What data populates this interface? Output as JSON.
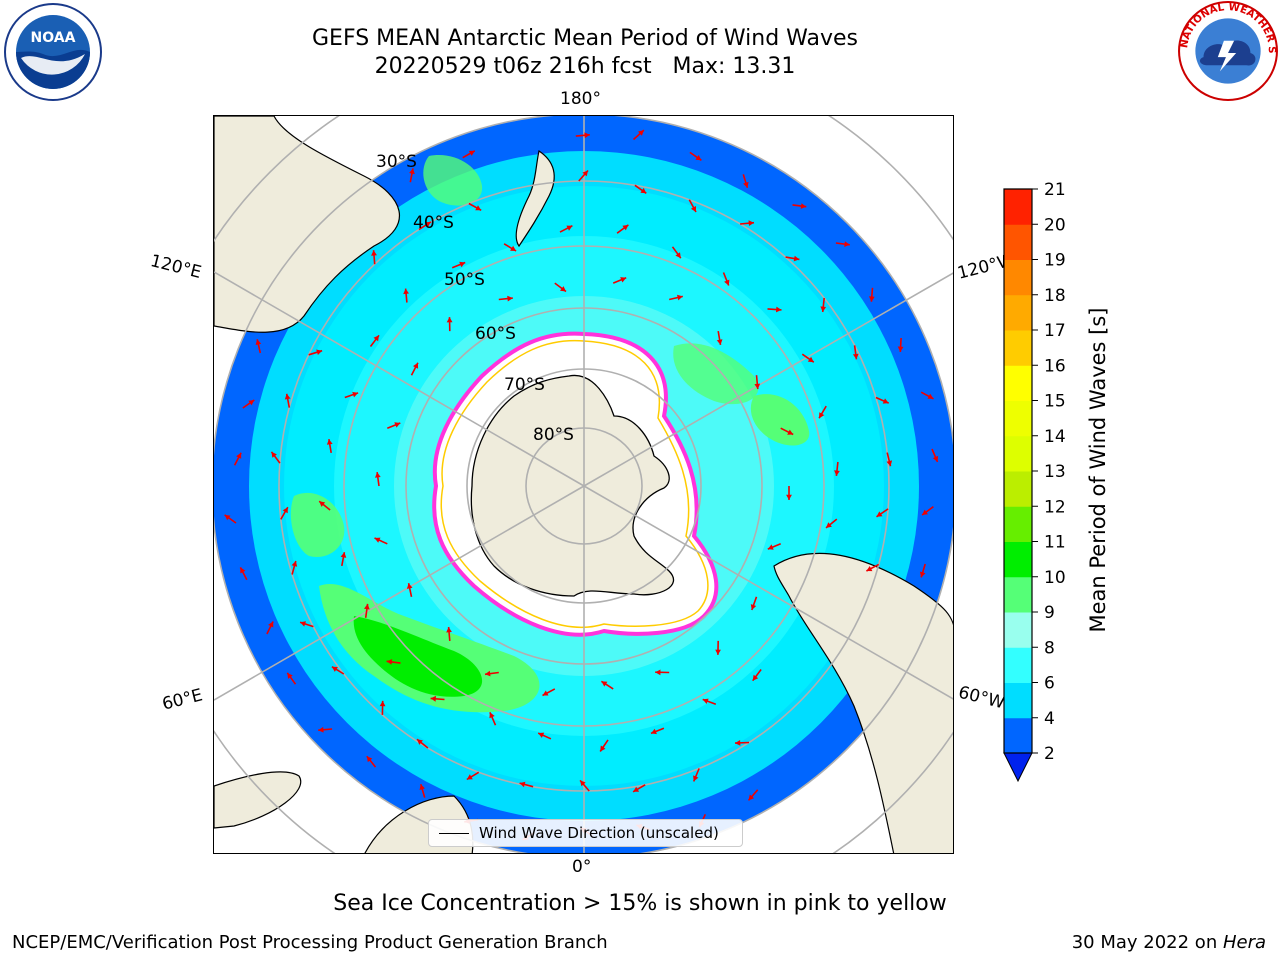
{
  "title": {
    "line1": "GEFS MEAN Antarctic Mean Period of Wind Waves",
    "line2": "20220529 t06z 216h fcst   Max: 13.31"
  },
  "map": {
    "projection": "south-polar-stereographic",
    "parallel_labels": [
      "30°S",
      "40°S",
      "50°S",
      "60°S",
      "70°S",
      "80°S"
    ],
    "meridian_labels": {
      "top": "180°",
      "bottom": "0°",
      "left_upper": "120°E",
      "left_lower": "60°E",
      "right_upper": "120°W",
      "right_lower": "60°W"
    },
    "land_color": "#efecdc",
    "sea_ice_color": "#ffffff",
    "ice_edge_colors": [
      "#ff33dd",
      "#ffaa00",
      "#ffee00"
    ],
    "arrow_color": "#ee0000",
    "gridline_color": "#b0b0b0"
  },
  "legend": {
    "label": "Wind Wave Direction (unscaled)"
  },
  "colorbar": {
    "label": "Mean Period of Wind Waves [s]",
    "ticks": [
      "2",
      "4",
      "6",
      "8",
      "9",
      "10",
      "11",
      "12",
      "13",
      "14",
      "15",
      "16",
      "17",
      "18",
      "19",
      "20",
      "21"
    ],
    "colors": [
      "#0066ff",
      "#00ddff",
      "#33ffff",
      "#99ffee",
      "#55ff77",
      "#00ee00",
      "#66ee00",
      "#bbee00",
      "#ddff00",
      "#eeff00",
      "#ffff00",
      "#ffcc00",
      "#ffaa00",
      "#ff8800",
      "#ff5500",
      "#ff2200"
    ],
    "under_color": "#0022ee"
  },
  "caption": "Sea Ice Concentration > 15% is shown in pink to yellow",
  "footer": {
    "left": "NCEP/EMC/Verification Post Processing Product Generation Branch",
    "right_prefix": "30 May 2022 on ",
    "right_machine": "Hera"
  },
  "logos": {
    "left": "NOAA",
    "right": "NATIONAL WEATHER SERVICE"
  }
}
